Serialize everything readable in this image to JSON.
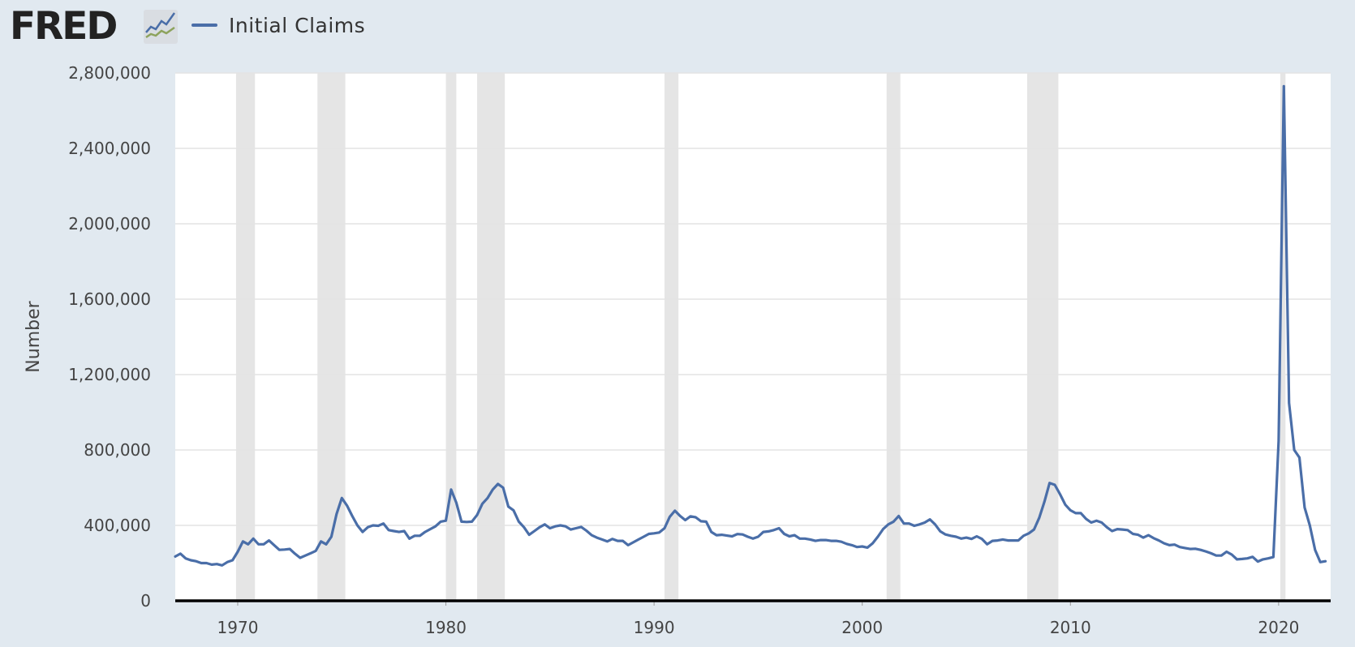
{
  "header": {
    "brand": "FRED",
    "legend_label": "Initial Claims"
  },
  "colors": {
    "background": "#e1e9f0",
    "plot_background": "#ffffff",
    "series": "#4a6ea8",
    "recession": "#e5e5e5",
    "grid": "#e4e4e4",
    "axis": "#000000"
  },
  "icons": {
    "logo": "fred-logo-icon",
    "logo_graph": "line-graph-icon"
  },
  "chart_data": {
    "type": "line",
    "title": "",
    "xlabel": "",
    "ylabel": "Number",
    "xlim": [
      1967.0,
      2022.5
    ],
    "ylim": [
      0,
      2800000
    ],
    "y_ticks": [
      0,
      400000,
      800000,
      1200000,
      1600000,
      2000000,
      2400000,
      2800000
    ],
    "y_tick_labels": [
      "0",
      "400,000",
      "800,000",
      "1,200,000",
      "1,600,000",
      "2,000,000",
      "2,400,000",
      "2,800,000"
    ],
    "x_ticks": [
      1970,
      1980,
      1990,
      2000,
      2010,
      2020
    ],
    "x_tick_labels": [
      "1970",
      "1980",
      "1990",
      "2000",
      "2010",
      "2020"
    ],
    "grid": true,
    "recessions": [
      [
        1969.92,
        1970.83
      ],
      [
        1973.83,
        1975.17
      ],
      [
        1980.0,
        1980.5
      ],
      [
        1981.5,
        1982.83
      ],
      [
        1990.5,
        1991.17
      ],
      [
        2001.17,
        2001.83
      ],
      [
        2007.92,
        2009.42
      ],
      [
        2020.08,
        2020.33
      ]
    ],
    "series": [
      {
        "name": "Initial Claims",
        "x": [
          1967.0,
          1967.25,
          1967.5,
          1967.75,
          1968.0,
          1968.25,
          1968.5,
          1968.75,
          1969.0,
          1969.25,
          1969.5,
          1969.75,
          1970.0,
          1970.25,
          1970.5,
          1970.75,
          1971.0,
          1971.25,
          1971.5,
          1971.75,
          1972.0,
          1972.25,
          1972.5,
          1972.75,
          1973.0,
          1973.25,
          1973.5,
          1973.75,
          1974.0,
          1974.25,
          1974.5,
          1974.75,
          1975.0,
          1975.25,
          1975.5,
          1975.75,
          1976.0,
          1976.25,
          1976.5,
          1976.75,
          1977.0,
          1977.25,
          1977.5,
          1977.75,
          1978.0,
          1978.25,
          1978.5,
          1978.75,
          1979.0,
          1979.25,
          1979.5,
          1979.75,
          1980.0,
          1980.25,
          1980.5,
          1980.75,
          1981.0,
          1981.25,
          1981.5,
          1981.75,
          1982.0,
          1982.25,
          1982.5,
          1982.75,
          1983.0,
          1983.25,
          1983.5,
          1983.75,
          1984.0,
          1984.25,
          1984.5,
          1984.75,
          1985.0,
          1985.25,
          1985.5,
          1985.75,
          1986.0,
          1986.25,
          1986.5,
          1986.75,
          1987.0,
          1987.25,
          1987.5,
          1987.75,
          1988.0,
          1988.25,
          1988.5,
          1988.75,
          1989.0,
          1989.25,
          1989.5,
          1989.75,
          1990.0,
          1990.25,
          1990.5,
          1990.75,
          1991.0,
          1991.25,
          1991.5,
          1991.75,
          1992.0,
          1992.25,
          1992.5,
          1992.75,
          1993.0,
          1993.25,
          1993.5,
          1993.75,
          1994.0,
          1994.25,
          1994.5,
          1994.75,
          1995.0,
          1995.25,
          1995.5,
          1995.75,
          1996.0,
          1996.25,
          1996.5,
          1996.75,
          1997.0,
          1997.25,
          1997.5,
          1997.75,
          1998.0,
          1998.25,
          1998.5,
          1998.75,
          1999.0,
          1999.25,
          1999.5,
          1999.75,
          2000.0,
          2000.25,
          2000.5,
          2000.75,
          2001.0,
          2001.25,
          2001.5,
          2001.75,
          2002.0,
          2002.25,
          2002.5,
          2002.75,
          2003.0,
          2003.25,
          2003.5,
          2003.75,
          2004.0,
          2004.25,
          2004.5,
          2004.75,
          2005.0,
          2005.25,
          2005.5,
          2005.75,
          2006.0,
          2006.25,
          2006.5,
          2006.75,
          2007.0,
          2007.25,
          2007.5,
          2007.75,
          2008.0,
          2008.25,
          2008.5,
          2008.75,
          2009.0,
          2009.25,
          2009.5,
          2009.75,
          2010.0,
          2010.25,
          2010.5,
          2010.75,
          2011.0,
          2011.25,
          2011.5,
          2011.75,
          2012.0,
          2012.25,
          2012.5,
          2012.75,
          2013.0,
          2013.25,
          2013.5,
          2013.75,
          2014.0,
          2014.25,
          2014.5,
          2014.75,
          2015.0,
          2015.25,
          2015.5,
          2015.75,
          2016.0,
          2016.25,
          2016.5,
          2016.75,
          2017.0,
          2017.25,
          2017.5,
          2017.75,
          2018.0,
          2018.25,
          2018.5,
          2018.75,
          2019.0,
          2019.25,
          2019.5,
          2019.75,
          2020.0,
          2020.25,
          2020.5,
          2020.75,
          2021.0,
          2021.25,
          2021.5,
          2021.75,
          2022.0,
          2022.25
        ],
        "values": [
          235000,
          250000,
          225000,
          215000,
          210000,
          200000,
          200000,
          192000,
          195000,
          188000,
          205000,
          215000,
          260000,
          315000,
          300000,
          330000,
          300000,
          300000,
          320000,
          295000,
          270000,
          272000,
          275000,
          250000,
          228000,
          240000,
          252000,
          265000,
          315000,
          300000,
          340000,
          460000,
          545000,
          505000,
          450000,
          400000,
          365000,
          390000,
          400000,
          398000,
          410000,
          375000,
          370000,
          365000,
          370000,
          330000,
          345000,
          345000,
          365000,
          380000,
          395000,
          420000,
          425000,
          590000,
          520000,
          420000,
          418000,
          420000,
          455000,
          515000,
          545000,
          590000,
          620000,
          600000,
          500000,
          480000,
          420000,
          390000,
          350000,
          370000,
          390000,
          405000,
          385000,
          395000,
          400000,
          395000,
          378000,
          385000,
          392000,
          372000,
          348000,
          335000,
          325000,
          315000,
          328000,
          318000,
          318000,
          295000,
          310000,
          325000,
          340000,
          355000,
          358000,
          362000,
          385000,
          445000,
          478000,
          450000,
          428000,
          448000,
          443000,
          422000,
          420000,
          365000,
          348000,
          350000,
          346000,
          342000,
          354000,
          352000,
          340000,
          330000,
          340000,
          365000,
          368000,
          375000,
          385000,
          355000,
          342000,
          348000,
          330000,
          330000,
          325000,
          318000,
          322000,
          322000,
          318000,
          318000,
          313000,
          302000,
          295000,
          285000,
          288000,
          282000,
          305000,
          340000,
          380000,
          405000,
          420000,
          450000,
          410000,
          410000,
          398000,
          405000,
          415000,
          432000,
          405000,
          368000,
          352000,
          345000,
          340000,
          330000,
          335000,
          328000,
          342000,
          328000,
          300000,
          318000,
          320000,
          325000,
          320000,
          320000,
          320000,
          345000,
          358000,
          378000,
          440000,
          525000,
          625000,
          615000,
          565000,
          510000,
          480000,
          465000,
          465000,
          435000,
          415000,
          425000,
          415000,
          390000,
          370000,
          380000,
          378000,
          375000,
          355000,
          350000,
          335000,
          348000,
          332000,
          320000,
          305000,
          295000,
          298000,
          285000,
          280000,
          275000,
          276000,
          270000,
          262000,
          252000,
          240000,
          240000,
          260000,
          245000,
          220000,
          222000,
          225000,
          233000,
          208000,
          220000,
          225000,
          232000,
          850000,
          2730000,
          1050000,
          800000,
          760000,
          495000,
          400000,
          270000,
          205000,
          210000
        ]
      }
    ]
  }
}
